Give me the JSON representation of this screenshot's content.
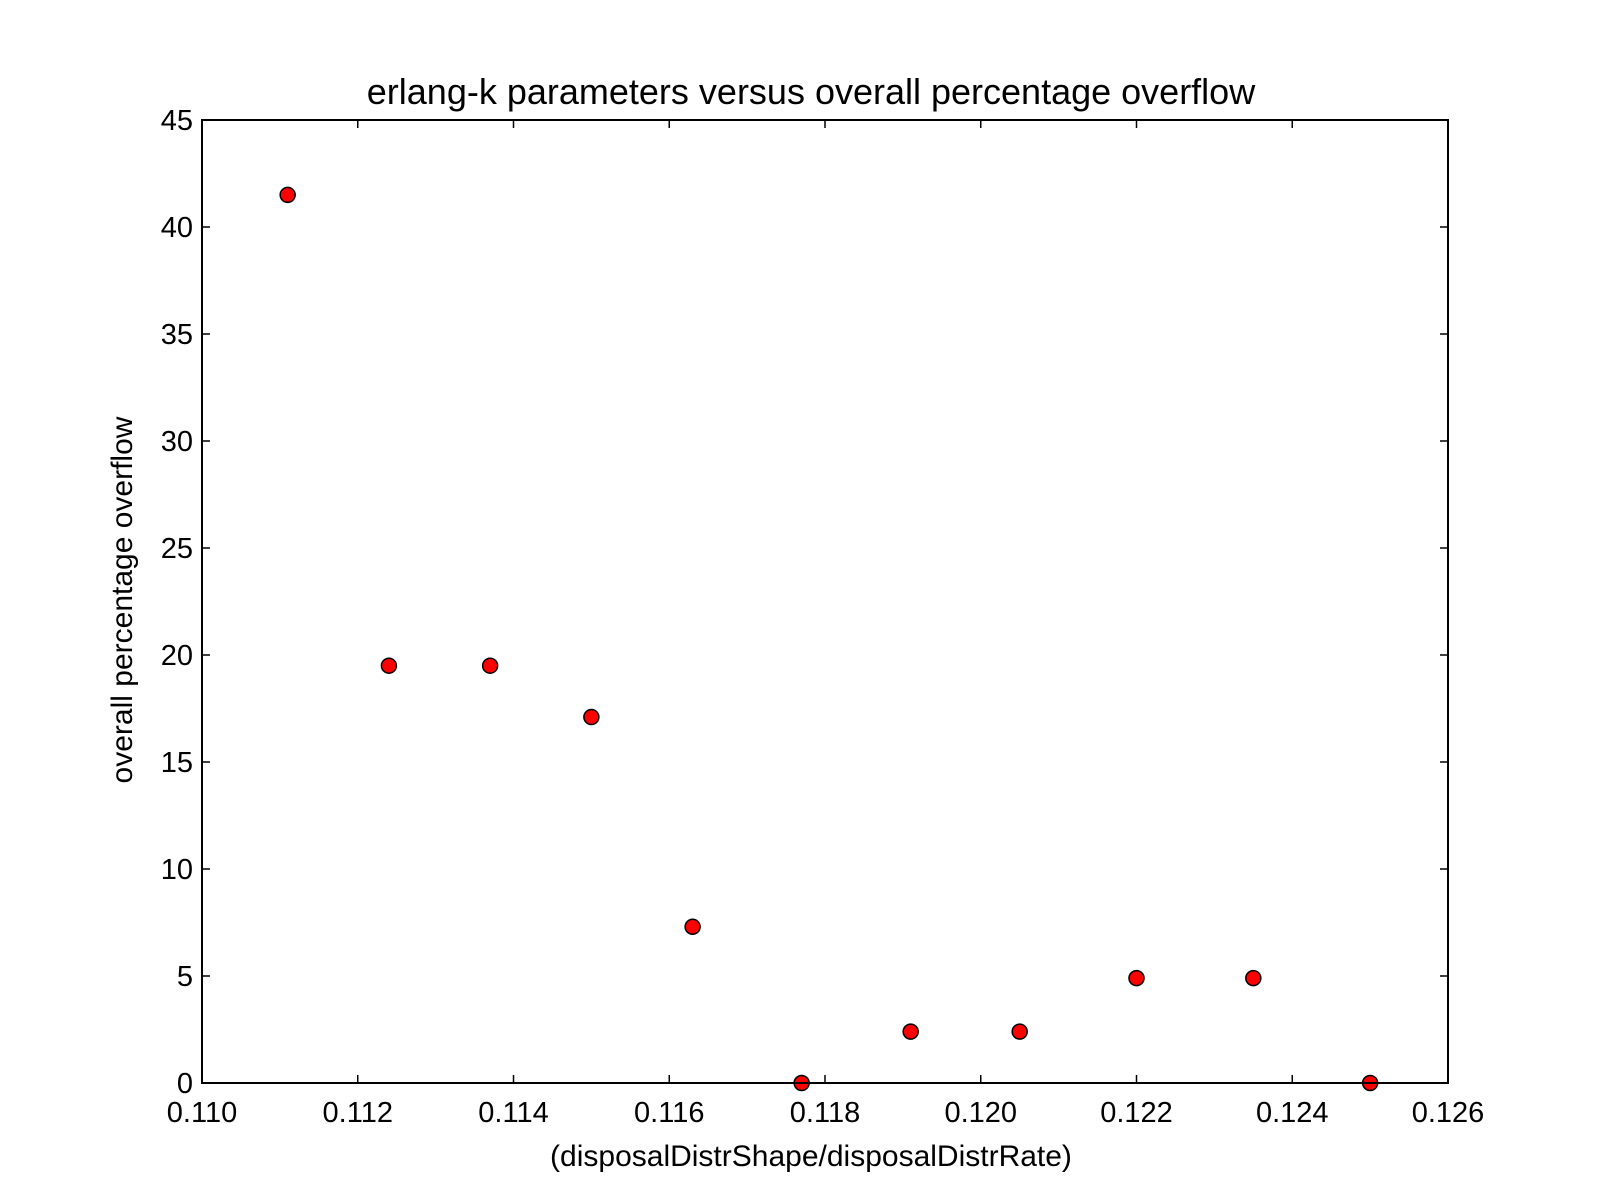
{
  "chart_data": {
    "type": "scatter",
    "title": "erlang-k parameters versus overall percentage overflow",
    "xlabel": "(disposalDistrShape/disposalDistrRate)",
    "ylabel": "overall percentage overflow",
    "xlim": [
      0.11,
      0.126
    ],
    "ylim": [
      0,
      45
    ],
    "xticks": [
      0.11,
      0.112,
      0.114,
      0.116,
      0.118,
      0.12,
      0.122,
      0.124,
      0.126
    ],
    "xtick_labels": [
      "0.110",
      "0.112",
      "0.114",
      "0.116",
      "0.118",
      "0.120",
      "0.122",
      "0.124",
      "0.126"
    ],
    "yticks": [
      0,
      5,
      10,
      15,
      20,
      25,
      30,
      35,
      40,
      45
    ],
    "ytick_labels": [
      "0",
      "5",
      "10",
      "15",
      "20",
      "25",
      "30",
      "35",
      "40",
      "45"
    ],
    "grid": false,
    "marker_color": "#ff0000",
    "marker_edge_color": "#000000",
    "points": [
      {
        "x": 0.1111,
        "y": 41.5
      },
      {
        "x": 0.1124,
        "y": 19.5
      },
      {
        "x": 0.1137,
        "y": 19.5
      },
      {
        "x": 0.115,
        "y": 17.1
      },
      {
        "x": 0.1163,
        "y": 7.3
      },
      {
        "x": 0.1177,
        "y": 0.0
      },
      {
        "x": 0.1191,
        "y": 2.4
      },
      {
        "x": 0.1205,
        "y": 2.4
      },
      {
        "x": 0.122,
        "y": 4.9
      },
      {
        "x": 0.1235,
        "y": 4.9
      },
      {
        "x": 0.125,
        "y": 0.0
      }
    ]
  }
}
